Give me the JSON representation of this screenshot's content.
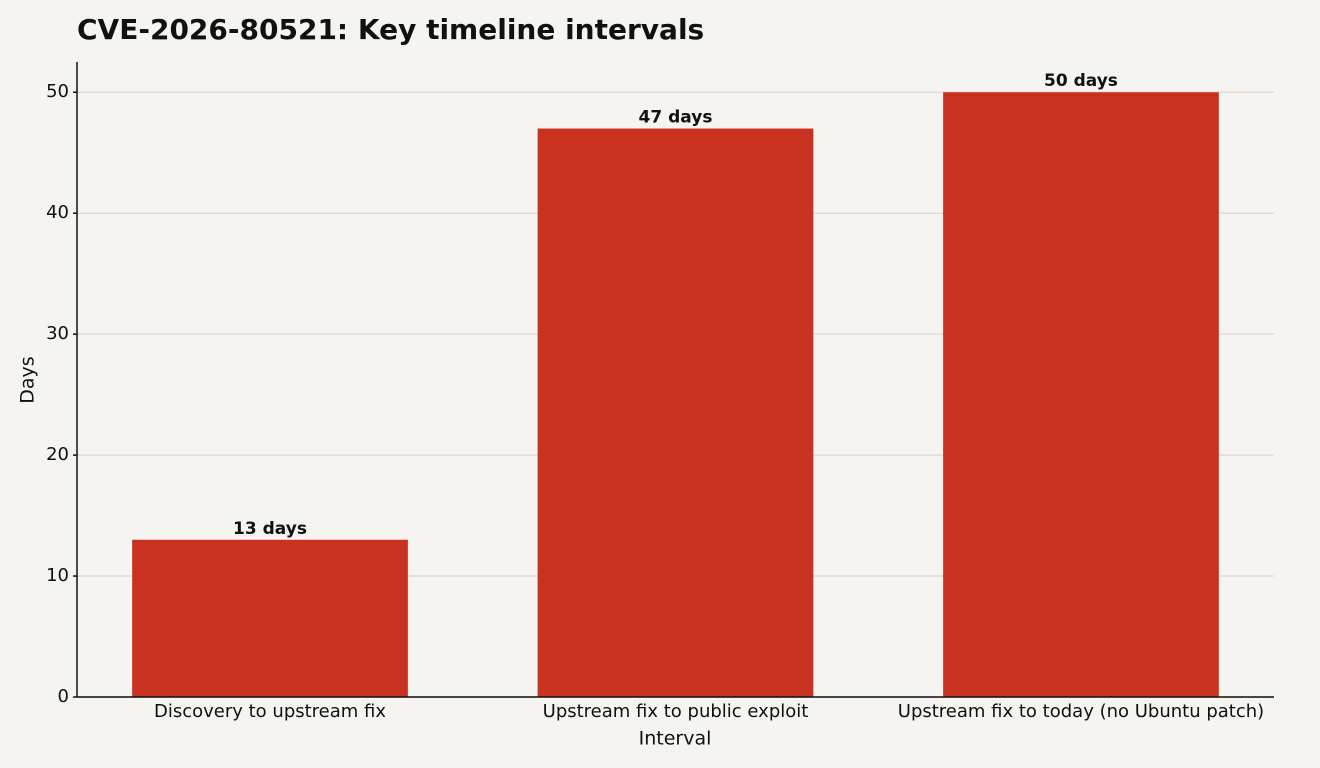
{
  "chart_data": {
    "type": "bar",
    "title": "CVE-2026-80521: Key timeline intervals",
    "x_label": "Interval",
    "y_label": "Days",
    "categories": [
      "Discovery to upstream fix",
      "Upstream fix to public exploit",
      "Upstream fix to today (no Ubuntu patch)"
    ],
    "values": [
      13,
      47,
      50
    ],
    "value_labels": [
      "13 days",
      "47 days",
      "50 days"
    ],
    "color": "#c93220",
    "ylim": [
      0,
      52.5
    ],
    "yticks": [
      0,
      10,
      20,
      30,
      40,
      50
    ],
    "grid": true
  }
}
